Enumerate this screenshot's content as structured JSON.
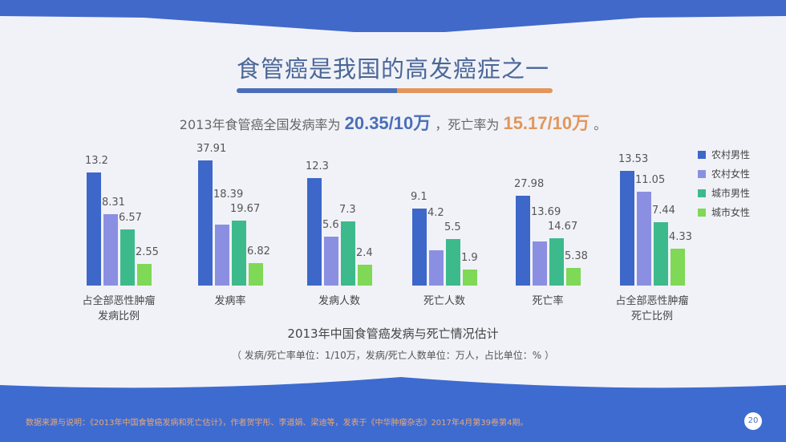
{
  "title": "食管癌是我国的高发癌症之一",
  "subtitle": {
    "prefix": "2013年食管癌全国发病率为",
    "incidence": "20.35/10万",
    "middle": "，死亡率为",
    "mortality": "15.17/10万",
    "suffix": "。"
  },
  "chart_data": {
    "type": "bar",
    "title": "2013年中国食管癌发病与死亡情况估计",
    "subtitle": "（ 发病/死亡率单位：1/10万，发病/死亡人数单位：万人，占比单位：% ）",
    "categories": [
      "占全部恶性肿瘤\n发病比例",
      "发病率",
      "发病人数",
      "死亡人数",
      "死亡率",
      "占全部恶性肿瘤\n死亡比例"
    ],
    "series": [
      {
        "name": "农村男性",
        "color": "#3d67c9",
        "values": [
          13.2,
          37.91,
          12.3,
          9.1,
          27.98,
          13.53
        ]
      },
      {
        "name": "农村女性",
        "color": "#8b8fe2",
        "values": [
          8.31,
          18.39,
          5.6,
          4.2,
          13.69,
          11.05
        ]
      },
      {
        "name": "城市男性",
        "color": "#3dba8c",
        "values": [
          6.57,
          19.67,
          7.3,
          5.5,
          14.67,
          7.44
        ]
      },
      {
        "name": "城市女性",
        "color": "#7fd856",
        "values": [
          2.55,
          6.82,
          2.4,
          1.9,
          5.38,
          4.33
        ]
      }
    ],
    "legend": "right"
  },
  "footer": "数据来源与说明：《2013年中国食管癌发病和死亡估计》，作者贺宇彤、李道娟、梁迪等，发表于《中华肿瘤杂志》2017年4月第39卷第4期。",
  "page_number": "20"
}
